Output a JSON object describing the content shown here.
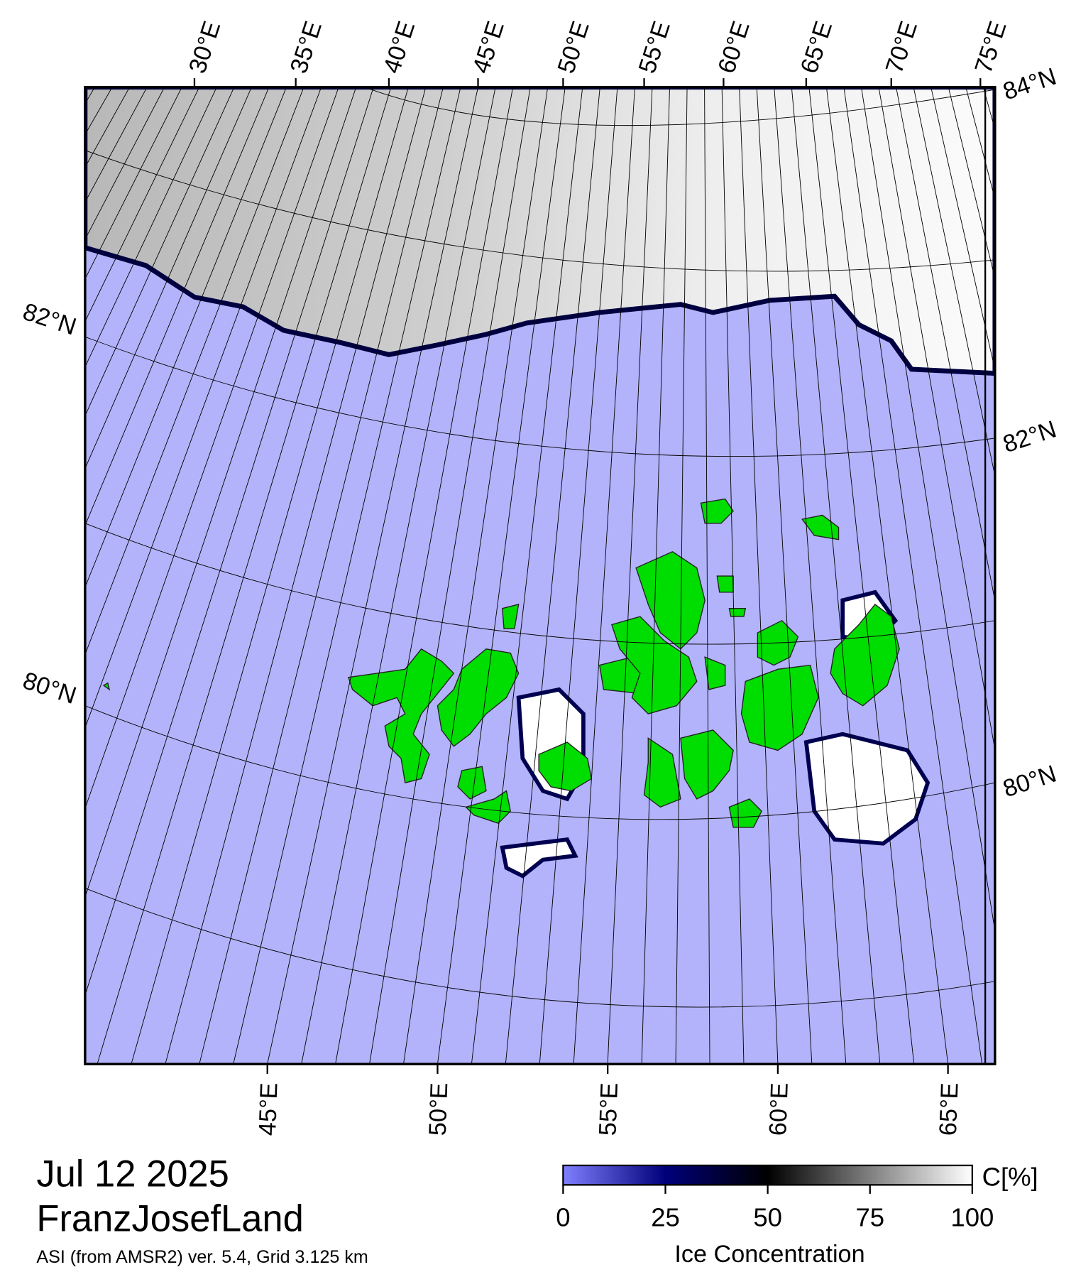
{
  "map": {
    "top_labels": [
      "30°E",
      "35°E",
      "40°E",
      "45°E",
      "50°E",
      "55°E",
      "60°E",
      "65°E",
      "70°E",
      "75°E"
    ],
    "right_labels": [
      "84°N",
      "82°N",
      "80°N"
    ],
    "left_labels": [
      "82°N",
      "80°N"
    ],
    "bottom_labels": [
      "45°E",
      "50°E",
      "55°E",
      "60°E",
      "65°E"
    ]
  },
  "header": {
    "date": "Jul 12 2025",
    "region": "FranzJosefLand",
    "source": "ASI (from AMSR2) ver. 5.4,  Grid 3.125 km"
  },
  "colorbar": {
    "label": "Ice Concentration",
    "unit": "C[%]",
    "lim": [
      0,
      100
    ],
    "ticks": [
      0,
      25,
      50,
      75,
      100
    ]
  }
}
